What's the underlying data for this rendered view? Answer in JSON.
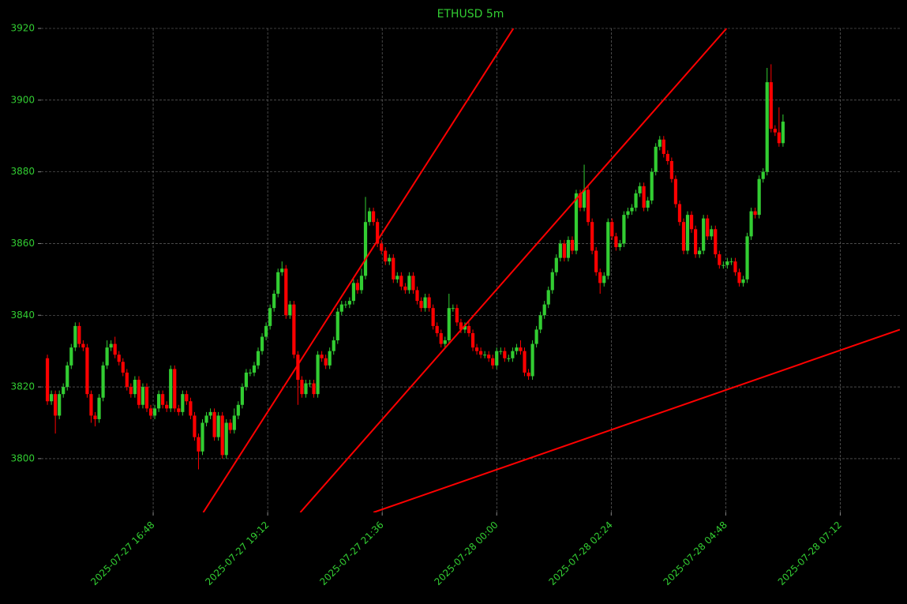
{
  "chart_data": {
    "type": "candlestick",
    "title": "ETHUSD 5m",
    "up_color": "#32cd32",
    "down_color": "#ff0000",
    "text_color": "#32cd32",
    "grid": true,
    "ylim": [
      3785,
      3920
    ],
    "yticks": [
      3800,
      3820,
      3840,
      3860,
      3880,
      3900,
      3920
    ],
    "xlim": [
      "2025-07-27 14:27",
      "2025-07-28 08:27"
    ],
    "xticks": [
      "2025-07-27 16:48",
      "2025-07-27 19:12",
      "2025-07-27 21:36",
      "2025-07-28 00:00",
      "2025-07-28 02:24",
      "2025-07-28 04:48",
      "2025-07-28 07:12"
    ],
    "x": [
      "2025-07-27 14:35",
      "2025-07-27 14:40",
      "2025-07-27 14:45",
      "2025-07-27 14:50",
      "2025-07-27 14:55",
      "2025-07-27 15:00",
      "2025-07-27 15:05",
      "2025-07-27 15:10",
      "2025-07-27 15:15",
      "2025-07-27 15:20",
      "2025-07-27 15:25",
      "2025-07-27 15:30",
      "2025-07-27 15:35",
      "2025-07-27 15:40",
      "2025-07-27 15:45",
      "2025-07-27 15:50",
      "2025-07-27 15:55",
      "2025-07-27 16:00",
      "2025-07-27 16:05",
      "2025-07-27 16:10",
      "2025-07-27 16:15",
      "2025-07-27 16:20",
      "2025-07-27 16:25",
      "2025-07-27 16:30",
      "2025-07-27 16:35",
      "2025-07-27 16:40",
      "2025-07-27 16:45",
      "2025-07-27 16:50",
      "2025-07-27 16:55",
      "2025-07-27 17:00",
      "2025-07-27 17:05",
      "2025-07-27 17:10",
      "2025-07-27 17:15",
      "2025-07-27 17:20",
      "2025-07-27 17:25",
      "2025-07-27 17:30",
      "2025-07-27 17:35",
      "2025-07-27 17:40",
      "2025-07-27 17:45",
      "2025-07-27 17:50",
      "2025-07-27 17:55",
      "2025-07-27 18:00",
      "2025-07-27 18:05",
      "2025-07-27 18:10",
      "2025-07-27 18:15",
      "2025-07-27 18:20",
      "2025-07-27 18:25",
      "2025-07-27 18:30",
      "2025-07-27 18:35",
      "2025-07-27 18:40",
      "2025-07-27 18:45",
      "2025-07-27 18:50",
      "2025-07-27 18:55",
      "2025-07-27 19:00",
      "2025-07-27 19:05",
      "2025-07-27 19:10",
      "2025-07-27 19:15",
      "2025-07-27 19:20",
      "2025-07-27 19:25",
      "2025-07-27 19:30",
      "2025-07-27 19:35",
      "2025-07-27 19:40",
      "2025-07-27 19:45",
      "2025-07-27 19:50",
      "2025-07-27 19:55",
      "2025-07-27 20:00",
      "2025-07-27 20:05",
      "2025-07-27 20:10",
      "2025-07-27 20:15",
      "2025-07-27 20:20",
      "2025-07-27 20:25",
      "2025-07-27 20:30",
      "2025-07-27 20:35",
      "2025-07-27 20:40",
      "2025-07-27 20:45",
      "2025-07-27 20:50",
      "2025-07-27 20:55",
      "2025-07-27 21:00",
      "2025-07-27 21:05",
      "2025-07-27 21:10",
      "2025-07-27 21:15",
      "2025-07-27 21:20",
      "2025-07-27 21:25",
      "2025-07-27 21:30",
      "2025-07-27 21:35",
      "2025-07-27 21:40",
      "2025-07-27 21:45",
      "2025-07-27 21:50",
      "2025-07-27 21:55",
      "2025-07-27 22:00",
      "2025-07-27 22:05",
      "2025-07-27 22:10",
      "2025-07-27 22:15",
      "2025-07-27 22:20",
      "2025-07-27 22:25",
      "2025-07-27 22:30",
      "2025-07-27 22:35",
      "2025-07-27 22:40",
      "2025-07-27 22:45",
      "2025-07-27 22:50",
      "2025-07-27 22:55",
      "2025-07-27 23:00",
      "2025-07-27 23:05",
      "2025-07-27 23:10",
      "2025-07-27 23:15",
      "2025-07-27 23:20",
      "2025-07-27 23:25",
      "2025-07-27 23:30",
      "2025-07-27 23:35",
      "2025-07-27 23:40",
      "2025-07-27 23:45",
      "2025-07-27 23:50",
      "2025-07-27 23:55",
      "2025-07-28 00:00",
      "2025-07-28 00:05",
      "2025-07-28 00:10",
      "2025-07-28 00:15",
      "2025-07-28 00:20",
      "2025-07-28 00:25",
      "2025-07-28 00:30",
      "2025-07-28 00:35",
      "2025-07-28 00:40",
      "2025-07-28 00:45",
      "2025-07-28 00:50",
      "2025-07-28 00:55",
      "2025-07-28 01:00",
      "2025-07-28 01:05",
      "2025-07-28 01:10",
      "2025-07-28 01:15",
      "2025-07-28 01:20",
      "2025-07-28 01:25",
      "2025-07-28 01:30",
      "2025-07-28 01:35",
      "2025-07-28 01:40",
      "2025-07-28 01:45",
      "2025-07-28 01:50",
      "2025-07-28 01:55",
      "2025-07-28 02:00",
      "2025-07-28 02:05",
      "2025-07-28 02:10",
      "2025-07-28 02:15",
      "2025-07-28 02:20",
      "2025-07-28 02:25",
      "2025-07-28 02:30",
      "2025-07-28 02:35",
      "2025-07-28 02:40",
      "2025-07-28 02:45",
      "2025-07-28 02:50",
      "2025-07-28 02:55",
      "2025-07-28 03:00",
      "2025-07-28 03:05",
      "2025-07-28 03:10",
      "2025-07-28 03:15",
      "2025-07-28 03:20",
      "2025-07-28 03:25",
      "2025-07-28 03:30",
      "2025-07-28 03:35",
      "2025-07-28 03:40",
      "2025-07-28 03:45",
      "2025-07-28 03:50",
      "2025-07-28 03:55",
      "2025-07-28 04:00",
      "2025-07-28 04:05",
      "2025-07-28 04:10",
      "2025-07-28 04:15",
      "2025-07-28 04:20",
      "2025-07-28 04:25",
      "2025-07-28 04:30",
      "2025-07-28 04:35",
      "2025-07-28 04:40",
      "2025-07-28 04:45",
      "2025-07-28 04:50",
      "2025-07-28 04:55",
      "2025-07-28 05:00",
      "2025-07-28 05:05",
      "2025-07-28 05:10",
      "2025-07-28 05:15",
      "2025-07-28 05:20",
      "2025-07-28 05:25",
      "2025-07-28 05:30",
      "2025-07-28 05:35",
      "2025-07-28 05:40",
      "2025-07-28 05:45",
      "2025-07-28 05:50",
      "2025-07-28 05:55",
      "2025-07-28 06:00"
    ],
    "open": [
      3828,
      3816,
      3818,
      3812,
      3818,
      3820,
      3826,
      3831,
      3837,
      3832,
      3831,
      3818,
      3812,
      3811,
      3817,
      3826,
      3831,
      3832,
      3829,
      3827,
      3824,
      3820,
      3818,
      3822,
      3815,
      3820,
      3814,
      3812,
      3814,
      3818,
      3815,
      3814,
      3825,
      3814,
      3813,
      3818,
      3816,
      3812,
      3806,
      3802,
      3810,
      3812,
      3813,
      3806,
      3812,
      3801,
      3810,
      3808,
      3812,
      3815,
      3820,
      3824,
      3824,
      3826,
      3830,
      3834,
      3837,
      3842,
      3846,
      3852,
      3853,
      3840,
      3843,
      3829,
      3822,
      3818,
      3821,
      3821,
      3818,
      3829,
      3828,
      3826,
      3830,
      3833,
      3841,
      3843,
      3843,
      3844,
      3849,
      3847,
      3851,
      3866,
      3869,
      3866,
      3860,
      3858,
      3855,
      3856,
      3850,
      3851,
      3848,
      3847,
      3851,
      3847,
      3844,
      3842,
      3845,
      3842,
      3837,
      3835,
      3832,
      3833,
      3842,
      3842,
      3838,
      3836,
      3837,
      3835,
      3831,
      3830,
      3829,
      3829,
      3828,
      3826,
      3830,
      3830,
      3828,
      3828,
      3830,
      3831,
      3830,
      3824,
      3823,
      3832,
      3836,
      3840,
      3843,
      3847,
      3852,
      3856,
      3860,
      3856,
      3861,
      3858,
      3874,
      3870,
      3875,
      3866,
      3858,
      3852,
      3849,
      3851,
      3866,
      3862,
      3859,
      3860,
      3868,
      3869,
      3870,
      3874,
      3876,
      3870,
      3872,
      3880,
      3887,
      3889,
      3885,
      3883,
      3878,
      3871,
      3866,
      3858,
      3868,
      3864,
      3857,
      3858,
      3867,
      3862,
      3864,
      3857,
      3854,
      3854,
      3855,
      3855,
      3852,
      3849,
      3850,
      3862,
      3869,
      3868,
      3878,
      3880,
      3905,
      3892,
      3891,
      3888
    ],
    "high": [
      3829,
      3819,
      3819,
      3819,
      3821,
      3827,
      3832,
      3838,
      3838,
      3833,
      3832,
      3819,
      3813,
      3818,
      3827,
      3833,
      3833,
      3834,
      3830,
      3828,
      3825,
      3821,
      3823,
      3823,
      3821,
      3821,
      3815,
      3815,
      3819,
      3819,
      3816,
      3826,
      3826,
      3815,
      3819,
      3819,
      3817,
      3813,
      3807,
      3811,
      3813,
      3814,
      3814,
      3813,
      3813,
      3811,
      3811,
      3814,
      3816,
      3821,
      3825,
      3825,
      3827,
      3831,
      3835,
      3838,
      3843,
      3847,
      3853,
      3855,
      3854,
      3844,
      3844,
      3830,
      3823,
      3822,
      3822,
      3822,
      3830,
      3830,
      3829,
      3831,
      3834,
      3842,
      3844,
      3844,
      3845,
      3850,
      3850,
      3853,
      3873,
      3870,
      3870,
      3867,
      3861,
      3859,
      3857,
      3857,
      3852,
      3852,
      3849,
      3852,
      3852,
      3848,
      3845,
      3846,
      3846,
      3843,
      3838,
      3836,
      3834,
      3846,
      3843,
      3843,
      3839,
      3838,
      3838,
      3836,
      3832,
      3831,
      3830,
      3830,
      3829,
      3831,
      3831,
      3831,
      3829,
      3831,
      3832,
      3833,
      3831,
      3825,
      3833,
      3837,
      3841,
      3844,
      3848,
      3853,
      3857,
      3861,
      3861,
      3862,
      3862,
      3875,
      3875,
      3882,
      3876,
      3867,
      3859,
      3853,
      3852,
      3867,
      3867,
      3863,
      3861,
      3869,
      3870,
      3871,
      3875,
      3877,
      3877,
      3873,
      3881,
      3888,
      3890,
      3890,
      3886,
      3884,
      3879,
      3872,
      3867,
      3869,
      3869,
      3865,
      3859,
      3868,
      3868,
      3865,
      3865,
      3858,
      3855,
      3856,
      3856,
      3856,
      3853,
      3851,
      3863,
      3870,
      3870,
      3879,
      3881,
      3909,
      3910,
      3893,
      3898,
      3896
    ],
    "low": [
      3815,
      3815,
      3807,
      3811,
      3817,
      3819,
      3825,
      3830,
      3831,
      3830,
      3817,
      3810,
      3809,
      3810,
      3816,
      3825,
      3830,
      3828,
      3826,
      3823,
      3819,
      3817,
      3817,
      3814,
      3814,
      3813,
      3811,
      3811,
      3813,
      3814,
      3813,
      3813,
      3813,
      3812,
      3812,
      3815,
      3811,
      3805,
      3797,
      3801,
      3809,
      3811,
      3805,
      3805,
      3800,
      3800,
      3807,
      3807,
      3811,
      3814,
      3819,
      3823,
      3823,
      3825,
      3829,
      3833,
      3836,
      3841,
      3845,
      3851,
      3839,
      3839,
      3828,
      3815,
      3817,
      3817,
      3820,
      3817,
      3817,
      3827,
      3825,
      3825,
      3829,
      3832,
      3840,
      3842,
      3842,
      3843,
      3846,
      3846,
      3850,
      3865,
      3865,
      3859,
      3857,
      3854,
      3854,
      3849,
      3849,
      3847,
      3846,
      3846,
      3846,
      3843,
      3841,
      3841,
      3841,
      3836,
      3834,
      3831,
      3831,
      3832,
      3841,
      3837,
      3835,
      3835,
      3834,
      3830,
      3829,
      3828,
      3828,
      3827,
      3825,
      3825,
      3829,
      3827,
      3827,
      3827,
      3829,
      3829,
      3823,
      3822,
      3822,
      3831,
      3835,
      3839,
      3842,
      3846,
      3851,
      3855,
      3855,
      3855,
      3857,
      3857,
      3869,
      3869,
      3865,
      3857,
      3851,
      3846,
      3848,
      3850,
      3861,
      3858,
      3858,
      3859,
      3867,
      3868,
      3869,
      3873,
      3869,
      3869,
      3871,
      3879,
      3886,
      3884,
      3882,
      3877,
      3870,
      3865,
      3857,
      3857,
      3863,
      3856,
      3856,
      3857,
      3861,
      3861,
      3856,
      3853,
      3853,
      3853,
      3854,
      3851,
      3848,
      3848,
      3849,
      3861,
      3867,
      3867,
      3877,
      3879,
      3891,
      3890,
      3887,
      3887
    ],
    "close": [
      3816,
      3818,
      3812,
      3818,
      3820,
      3826,
      3831,
      3837,
      3832,
      3831,
      3818,
      3812,
      3811,
      3817,
      3826,
      3831,
      3832,
      3829,
      3827,
      3824,
      3820,
      3818,
      3822,
      3815,
      3820,
      3814,
      3812,
      3814,
      3818,
      3815,
      3814,
      3825,
      3814,
      3813,
      3818,
      3816,
      3812,
      3806,
      3802,
      3810,
      3812,
      3813,
      3806,
      3812,
      3801,
      3810,
      3808,
      3812,
      3815,
      3820,
      3824,
      3824,
      3826,
      3830,
      3834,
      3837,
      3842,
      3846,
      3852,
      3853,
      3840,
      3843,
      3829,
      3822,
      3818,
      3821,
      3821,
      3818,
      3829,
      3828,
      3826,
      3830,
      3833,
      3841,
      3843,
      3843,
      3844,
      3849,
      3847,
      3851,
      3866,
      3869,
      3866,
      3860,
      3858,
      3855,
      3856,
      3850,
      3851,
      3848,
      3847,
      3851,
      3847,
      3844,
      3842,
      3845,
      3842,
      3837,
      3835,
      3832,
      3833,
      3842,
      3842,
      3838,
      3836,
      3837,
      3835,
      3831,
      3830,
      3829,
      3829,
      3828,
      3826,
      3830,
      3830,
      3828,
      3828,
      3830,
      3831,
      3830,
      3824,
      3823,
      3832,
      3836,
      3840,
      3843,
      3847,
      3852,
      3856,
      3860,
      3856,
      3861,
      3858,
      3874,
      3870,
      3875,
      3866,
      3858,
      3852,
      3849,
      3851,
      3866,
      3862,
      3859,
      3860,
      3868,
      3869,
      3870,
      3874,
      3876,
      3870,
      3872,
      3880,
      3887,
      3889,
      3885,
      3883,
      3878,
      3871,
      3866,
      3858,
      3868,
      3864,
      3857,
      3858,
      3867,
      3862,
      3864,
      3857,
      3854,
      3854,
      3855,
      3855,
      3852,
      3849,
      3850,
      3862,
      3869,
      3868,
      3878,
      3880,
      3905,
      3892,
      3891,
      3888,
      3894
    ],
    "trend_color": "#ff0000",
    "trend_lines": [
      {
        "x": [
          "2025-07-27 17:51",
          "2025-07-28 00:21"
        ],
        "y": [
          3785,
          3920
        ]
      },
      {
        "x": [
          "2025-07-27 19:53",
          "2025-07-28 04:49"
        ],
        "y": [
          3785,
          3920
        ]
      },
      {
        "x": [
          "2025-07-27 21:25",
          "2025-07-28 08:27"
        ],
        "y": [
          3785,
          3836
        ]
      }
    ]
  }
}
